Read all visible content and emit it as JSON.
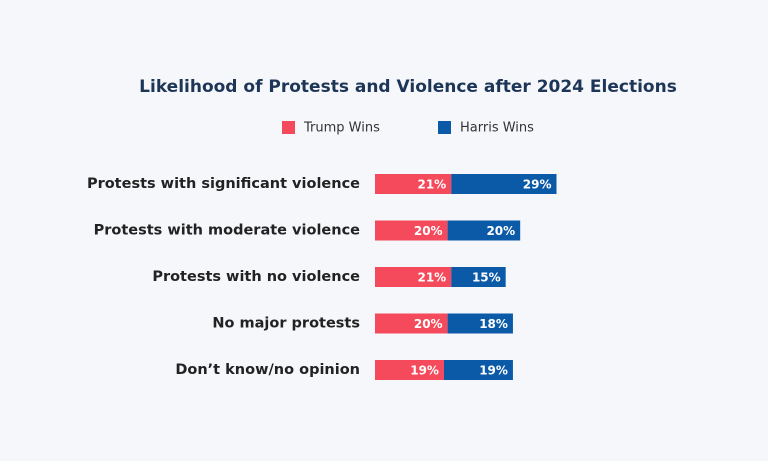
{
  "chart_data": {
    "type": "stacked-bar-horizontal",
    "title": "Likelihood of Protests and Violence after 2024 Elections",
    "categories": [
      "Protests with significant violence",
      "Protests with moderate violence",
      "Protests with no violence",
      "No major protests",
      "Don’t know/no opinion"
    ],
    "series": [
      {
        "name": "Trump Wins",
        "color": "#f54a5b",
        "values": [
          21,
          20,
          21,
          20,
          19
        ],
        "value_labels": [
          "21%",
          "20%",
          "21%",
          "20%",
          "19%"
        ]
      },
      {
        "name": "Harris Wins",
        "color": "#0b5aa8",
        "values": [
          29,
          20,
          15,
          18,
          19
        ],
        "value_labels": [
          "29%",
          "20%",
          "15%",
          "18%",
          "19%"
        ]
      }
    ]
  }
}
